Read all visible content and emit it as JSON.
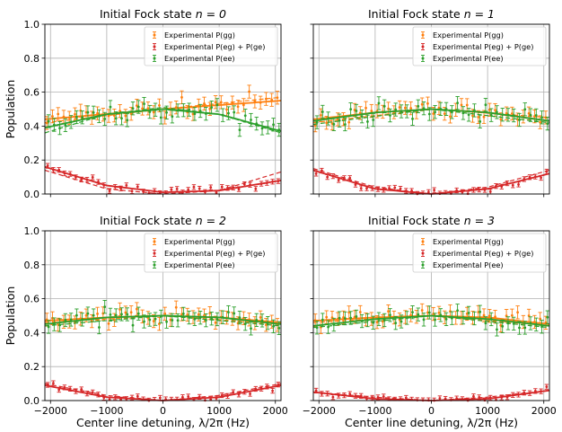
{
  "figure": {
    "ylabel": "Population",
    "xlabel": "Center line detuning, λ/2π (Hz)",
    "legend_entries": [
      "Experimental P(gg)",
      "Experimental P(eg) + P(ge)",
      "Experimental P(ee)"
    ]
  },
  "colors": {
    "gg": "#ff7f0e",
    "eg": "#d62728",
    "ee": "#2ca02c",
    "grid": "#b0b0b0"
  },
  "chart_data": [
    {
      "type": "scatter",
      "title": "Initial Fock state n = 0",
      "title_prefix": "Initial Fock state ",
      "title_math": "n = 0",
      "xlim": [
        -2100,
        2100
      ],
      "ylim": [
        0,
        1
      ],
      "x_ticks": [
        -2000,
        -1000,
        0,
        1000,
        2000
      ],
      "x_tick_labels": [
        "−2000",
        "−1000",
        "0",
        "1000",
        "2000"
      ],
      "y_ticks": [
        0,
        0.2,
        0.4,
        0.6,
        0.8,
        1.0
      ],
      "y_tick_labels": [
        "0.0",
        "0.2",
        "0.4",
        "0.6",
        "0.8",
        "1.0"
      ],
      "grid": true,
      "legend": "top-right",
      "series": [
        {
          "key": "gg",
          "name": "Experimental P(gg)",
          "fit_points": [
            [
              -2100,
              0.44
            ],
            [
              0,
              0.5
            ],
            [
              2100,
              0.55
            ]
          ],
          "fit_dashed_points": [
            [
              -2100,
              0.42
            ],
            [
              0,
              0.5
            ],
            [
              2100,
              0.57
            ]
          ]
        },
        {
          "key": "eg",
          "name": "Experimental P(eg) + P(ge)",
          "fit_points": [
            [
              -2100,
              0.16
            ],
            [
              -1000,
              0.05
            ],
            [
              0,
              0.01
            ],
            [
              1000,
              0.02
            ],
            [
              2100,
              0.08
            ]
          ],
          "fit_dashed_points": [
            [
              -2100,
              0.14
            ],
            [
              -1000,
              0.03
            ],
            [
              0,
              0.0
            ],
            [
              1000,
              0.02
            ],
            [
              2100,
              0.13
            ]
          ]
        },
        {
          "key": "ee",
          "name": "Experimental P(ee)",
          "fit_points": [
            [
              -2100,
              0.39
            ],
            [
              -1000,
              0.47
            ],
            [
              0,
              0.5
            ],
            [
              1000,
              0.47
            ],
            [
              2100,
              0.37
            ]
          ],
          "fit_dashed_points": [
            [
              -2100,
              0.36
            ],
            [
              -1000,
              0.47
            ],
            [
              0,
              0.51
            ],
            [
              1000,
              0.47
            ],
            [
              2100,
              0.36
            ]
          ]
        }
      ]
    },
    {
      "type": "scatter",
      "title": "Initial Fock state n = 1",
      "title_prefix": "Initial Fock state ",
      "title_math": "n = 1",
      "xlim": [
        -2100,
        2100
      ],
      "ylim": [
        0,
        1
      ],
      "x_ticks": [
        -2000,
        -1000,
        0,
        1000,
        2000
      ],
      "x_tick_labels": [
        "−2000",
        "−1000",
        "0",
        "1000",
        "2000"
      ],
      "y_ticks": [
        0,
        0.2,
        0.4,
        0.6,
        0.8,
        1.0
      ],
      "y_tick_labels": [
        "0.0",
        "0.2",
        "0.4",
        "0.6",
        "0.8",
        "1.0"
      ],
      "grid": true,
      "legend": "top-right",
      "series": [
        {
          "key": "gg",
          "name": "Experimental P(gg)",
          "fit_points": [
            [
              -2100,
              0.44
            ],
            [
              -1000,
              0.48
            ],
            [
              0,
              0.5
            ],
            [
              1000,
              0.48
            ],
            [
              2100,
              0.43
            ]
          ],
          "fit_dashed_points": [
            [
              -2100,
              0.42
            ],
            [
              0,
              0.5
            ],
            [
              2100,
              0.45
            ]
          ]
        },
        {
          "key": "eg",
          "name": "Experimental P(eg) + P(ge)",
          "fit_points": [
            [
              -2100,
              0.14
            ],
            [
              -1000,
              0.03
            ],
            [
              0,
              0.0
            ],
            [
              1000,
              0.03
            ],
            [
              2100,
              0.12
            ]
          ],
          "fit_dashed_points": [
            [
              -2100,
              0.15
            ],
            [
              -1000,
              0.04
            ],
            [
              0,
              0.0
            ],
            [
              1000,
              0.04
            ],
            [
              2100,
              0.14
            ]
          ]
        },
        {
          "key": "ee",
          "name": "Experimental P(ee)",
          "fit_points": [
            [
              -2100,
              0.43
            ],
            [
              -1000,
              0.48
            ],
            [
              0,
              0.5
            ],
            [
              1000,
              0.48
            ],
            [
              2100,
              0.43
            ]
          ],
          "fit_dashed_points": [
            [
              -2100,
              0.41
            ],
            [
              0,
              0.5
            ],
            [
              2100,
              0.42
            ]
          ]
        }
      ]
    },
    {
      "type": "scatter",
      "title": "Initial Fock state n = 2",
      "title_prefix": "Initial Fock state ",
      "title_math": "n = 2",
      "xlim": [
        -2100,
        2100
      ],
      "ylim": [
        0,
        1
      ],
      "x_ticks": [
        -2000,
        -1000,
        0,
        1000,
        2000
      ],
      "x_tick_labels": [
        "−2000",
        "−1000",
        "0",
        "1000",
        "2000"
      ],
      "y_ticks": [
        0,
        0.2,
        0.4,
        0.6,
        0.8,
        1.0
      ],
      "y_tick_labels": [
        "0.0",
        "0.2",
        "0.4",
        "0.6",
        "0.8",
        "1.0"
      ],
      "grid": true,
      "legend": "top-right",
      "series": [
        {
          "key": "gg",
          "name": "Experimental P(gg)",
          "fit_points": [
            [
              -2100,
              0.47
            ],
            [
              -1000,
              0.49
            ],
            [
              0,
              0.5
            ],
            [
              1000,
              0.49
            ],
            [
              2100,
              0.46
            ]
          ],
          "fit_dashed_points": [
            [
              -2100,
              0.46
            ],
            [
              0,
              0.5
            ],
            [
              2100,
              0.45
            ]
          ]
        },
        {
          "key": "eg",
          "name": "Experimental P(eg) + P(ge)",
          "fit_points": [
            [
              -2100,
              0.09
            ],
            [
              -1000,
              0.02
            ],
            [
              0,
              0.0
            ],
            [
              1000,
              0.02
            ],
            [
              2100,
              0.09
            ]
          ],
          "fit_dashed_points": [
            [
              -2100,
              0.1
            ],
            [
              -1000,
              0.03
            ],
            [
              0,
              0.0
            ],
            [
              1000,
              0.03
            ],
            [
              2100,
              0.1
            ]
          ]
        },
        {
          "key": "ee",
          "name": "Experimental P(ee)",
          "fit_points": [
            [
              -2100,
              0.45
            ],
            [
              -1000,
              0.49
            ],
            [
              0,
              0.5
            ],
            [
              1000,
              0.49
            ],
            [
              2100,
              0.45
            ]
          ],
          "fit_dashed_points": [
            [
              -2100,
              0.44
            ],
            [
              0,
              0.5
            ],
            [
              2100,
              0.44
            ]
          ]
        }
      ]
    },
    {
      "type": "scatter",
      "title": "Initial Fock state n = 3",
      "title_prefix": "Initial Fock state ",
      "title_math": "n = 3",
      "xlim": [
        -2100,
        2100
      ],
      "ylim": [
        0,
        1
      ],
      "x_ticks": [
        -2000,
        -1000,
        0,
        1000,
        2000
      ],
      "x_tick_labels": [
        "−2000",
        "−1000",
        "0",
        "1000",
        "2000"
      ],
      "y_ticks": [
        0,
        0.2,
        0.4,
        0.6,
        0.8,
        1.0
      ],
      "y_tick_labels": [
        "0.0",
        "0.2",
        "0.4",
        "0.6",
        "0.8",
        "1.0"
      ],
      "grid": true,
      "legend": "top-right",
      "series": [
        {
          "key": "gg",
          "name": "Experimental P(gg)",
          "fit_points": [
            [
              -2100,
              0.47
            ],
            [
              -1000,
              0.49
            ],
            [
              0,
              0.5
            ],
            [
              1000,
              0.49
            ],
            [
              2100,
              0.45
            ]
          ],
          "fit_dashed_points": [
            [
              -2100,
              0.46
            ],
            [
              0,
              0.5
            ],
            [
              2100,
              0.44
            ]
          ]
        },
        {
          "key": "eg",
          "name": "Experimental P(eg) + P(ge)",
          "fit_points": [
            [
              -2100,
              0.05
            ],
            [
              -1000,
              0.01
            ],
            [
              0,
              0.0
            ],
            [
              1000,
              0.01
            ],
            [
              2100,
              0.06
            ]
          ],
          "fit_dashed_points": [
            [
              -2100,
              0.05
            ],
            [
              -1000,
              0.02
            ],
            [
              0,
              0.0
            ],
            [
              1000,
              0.02
            ],
            [
              2100,
              0.06
            ]
          ]
        },
        {
          "key": "ee",
          "name": "Experimental P(ee)",
          "fit_points": [
            [
              -2100,
              0.44
            ],
            [
              -1000,
              0.48
            ],
            [
              0,
              0.5
            ],
            [
              1000,
              0.48
            ],
            [
              2100,
              0.44
            ]
          ],
          "fit_dashed_points": [
            [
              -2100,
              0.43
            ],
            [
              0,
              0.5
            ],
            [
              2100,
              0.43
            ]
          ]
        }
      ]
    }
  ]
}
